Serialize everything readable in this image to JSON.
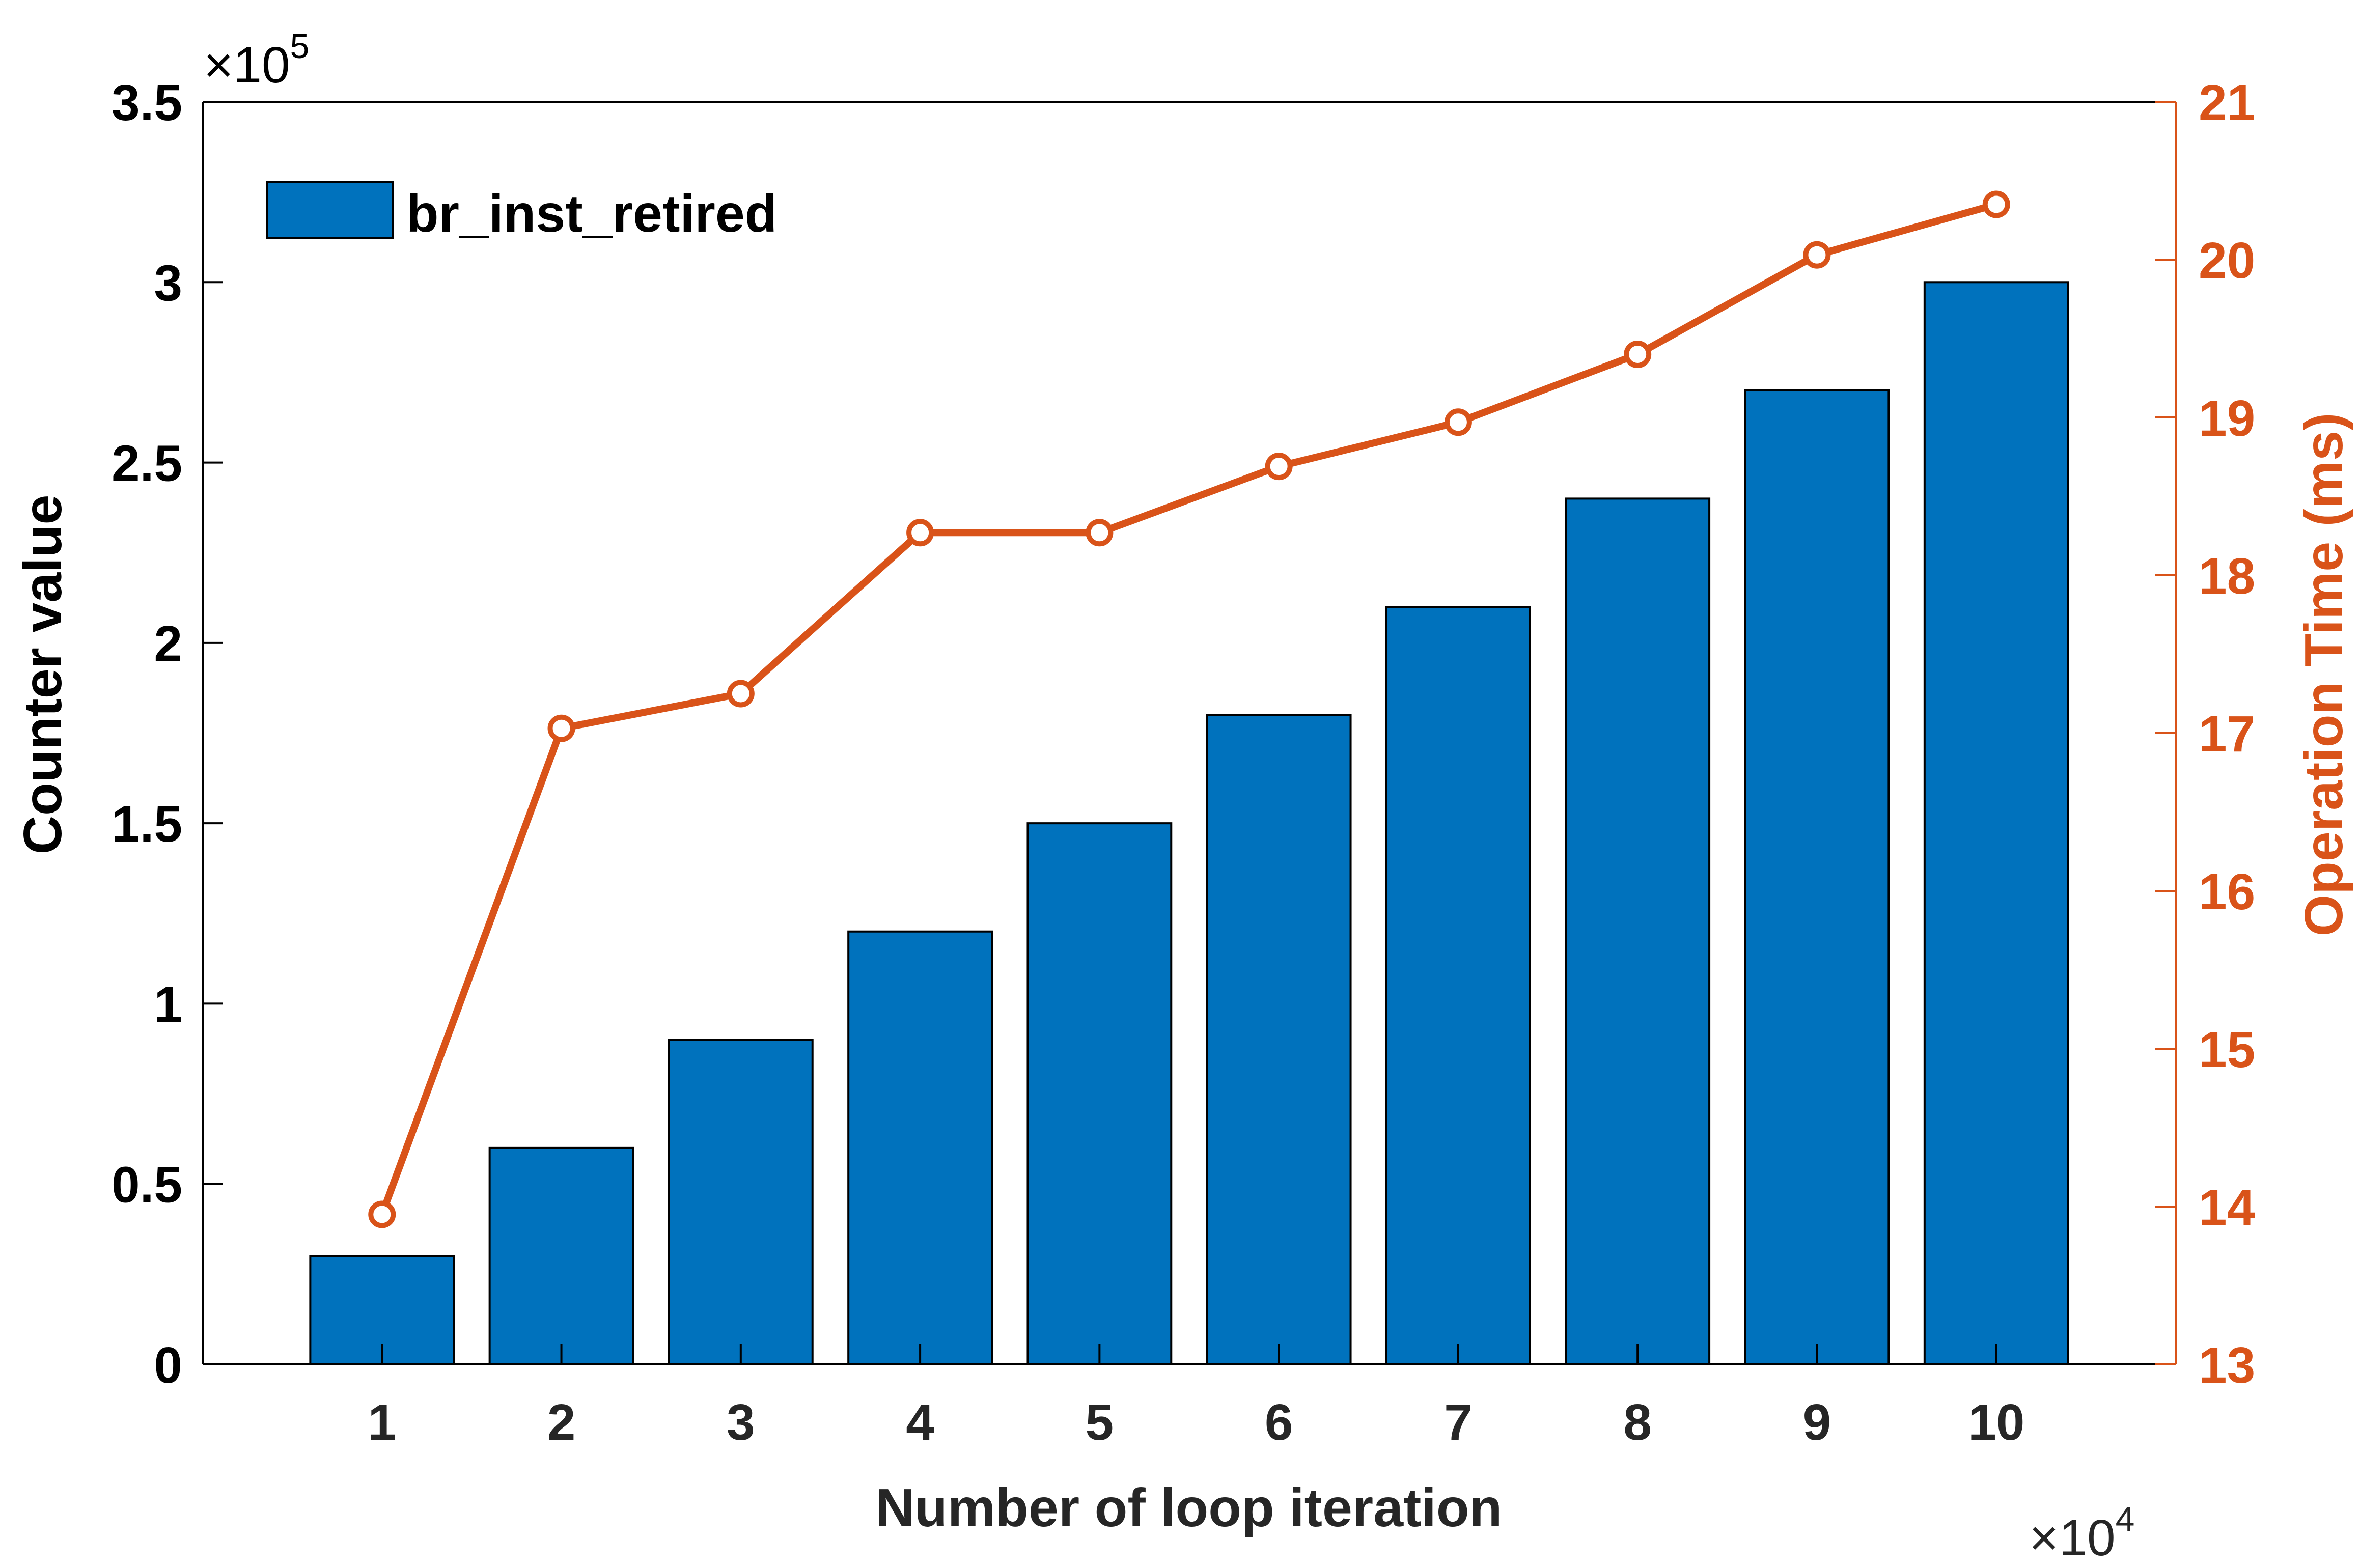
{
  "chart_data": {
    "type": "bar",
    "categories": [
      "1",
      "2",
      "3",
      "4",
      "5",
      "6",
      "7",
      "8",
      "9",
      "10"
    ],
    "series": [
      {
        "name": "br_inst_retired",
        "type": "bar",
        "axis": "left",
        "values": [
          0.3,
          0.6,
          0.9,
          1.2,
          1.5,
          1.8,
          2.1,
          2.4,
          2.7,
          3.0
        ]
      },
      {
        "type": "line",
        "axis": "right",
        "marker": "circle",
        "values": [
          13.95,
          17.03,
          17.25,
          18.27,
          18.27,
          18.69,
          18.97,
          19.4,
          20.03,
          20.35
        ]
      }
    ],
    "xlabel": "Number of loop iteration",
    "x_exponent": {
      "base": "×10",
      "power": "4"
    },
    "ylabel_left": "Counter value",
    "y_left_exponent": {
      "base": "×10",
      "power": "5"
    },
    "ylim_left": [
      0,
      3.5
    ],
    "y_left_ticks": [
      "0",
      "0.5",
      "1",
      "1.5",
      "2",
      "2.5",
      "3",
      "3.5"
    ],
    "ylabel_right": "Operation Time (ms)",
    "ylim_right": [
      13,
      21
    ],
    "y_right_ticks": [
      "13",
      "14",
      "15",
      "16",
      "17",
      "18",
      "19",
      "20",
      "21"
    ],
    "xlim": [
      0,
      11
    ],
    "grid": false,
    "legend_position": "top-left",
    "colors": {
      "bar": "#0072bd",
      "line": "#d95319",
      "left_axis": "#262626",
      "right_axis": "#d95319"
    }
  }
}
